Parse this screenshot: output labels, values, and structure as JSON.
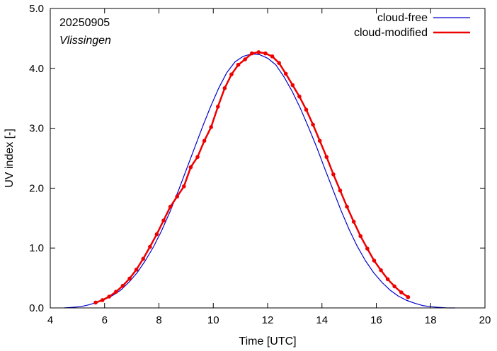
{
  "chart_data": {
    "type": "line",
    "xlabel": "Time  [UTC]",
    "ylabel": "UV index  [-]",
    "xlim": [
      4,
      20
    ],
    "ylim": [
      0.0,
      5.0
    ],
    "x_ticks": [
      "4",
      "6",
      "8",
      "10",
      "12",
      "14",
      "16",
      "18",
      "20"
    ],
    "y_ticks": [
      "0.0",
      "1.0",
      "2.0",
      "3.0",
      "4.0",
      "5.0"
    ],
    "annotations": [
      "20250905",
      "Vlissingen"
    ],
    "legend_position": "top-right",
    "grid": false,
    "series": [
      {
        "name": "cloud-free",
        "color": "#0000cc",
        "markers": false,
        "x": [
          4.5,
          4.8,
          5.1,
          5.4,
          5.7,
          6.0,
          6.3,
          6.6,
          6.9,
          7.2,
          7.5,
          7.8,
          8.1,
          8.4,
          8.7,
          9.0,
          9.3,
          9.6,
          9.9,
          10.2,
          10.5,
          10.8,
          11.1,
          11.4,
          11.7,
          12.0,
          12.3,
          12.6,
          12.9,
          13.2,
          13.5,
          13.8,
          14.1,
          14.4,
          14.7,
          15.0,
          15.3,
          15.6,
          15.9,
          16.2,
          16.5,
          16.8,
          17.1,
          17.4,
          17.7,
          18.0,
          18.3,
          18.6,
          18.9
        ],
        "y": [
          0.0,
          0.01,
          0.02,
          0.05,
          0.09,
          0.14,
          0.21,
          0.3,
          0.43,
          0.59,
          0.79,
          1.02,
          1.29,
          1.6,
          1.94,
          2.3,
          2.66,
          3.02,
          3.36,
          3.67,
          3.93,
          4.11,
          4.2,
          4.24,
          4.23,
          4.17,
          4.06,
          3.86,
          3.62,
          3.34,
          3.02,
          2.69,
          2.33,
          1.98,
          1.63,
          1.31,
          1.03,
          0.79,
          0.59,
          0.43,
          0.3,
          0.2,
          0.13,
          0.08,
          0.04,
          0.02,
          0.01,
          0.0,
          0.0
        ]
      },
      {
        "name": "cloud-modified",
        "color": "#ee0000",
        "markers": true,
        "x": [
          5.67,
          5.92,
          6.17,
          6.42,
          6.67,
          6.92,
          7.17,
          7.42,
          7.67,
          7.92,
          8.17,
          8.42,
          8.67,
          8.92,
          9.17,
          9.42,
          9.67,
          9.92,
          10.17,
          10.42,
          10.67,
          10.92,
          11.17,
          11.42,
          11.67,
          11.92,
          12.17,
          12.42,
          12.67,
          12.92,
          13.17,
          13.42,
          13.67,
          13.92,
          14.17,
          14.42,
          14.67,
          14.92,
          15.17,
          15.42,
          15.67,
          15.92,
          16.17,
          16.42,
          16.67,
          16.92,
          17.17
        ],
        "y": [
          0.09,
          0.13,
          0.19,
          0.27,
          0.37,
          0.49,
          0.64,
          0.82,
          1.02,
          1.23,
          1.46,
          1.69,
          1.86,
          2.03,
          2.35,
          2.52,
          2.79,
          3.02,
          3.36,
          3.67,
          3.9,
          4.06,
          4.15,
          4.25,
          4.27,
          4.25,
          4.2,
          4.09,
          3.91,
          3.72,
          3.53,
          3.31,
          3.06,
          2.79,
          2.52,
          2.23,
          1.96,
          1.69,
          1.44,
          1.2,
          0.99,
          0.79,
          0.63,
          0.48,
          0.36,
          0.26,
          0.18
        ]
      }
    ]
  }
}
